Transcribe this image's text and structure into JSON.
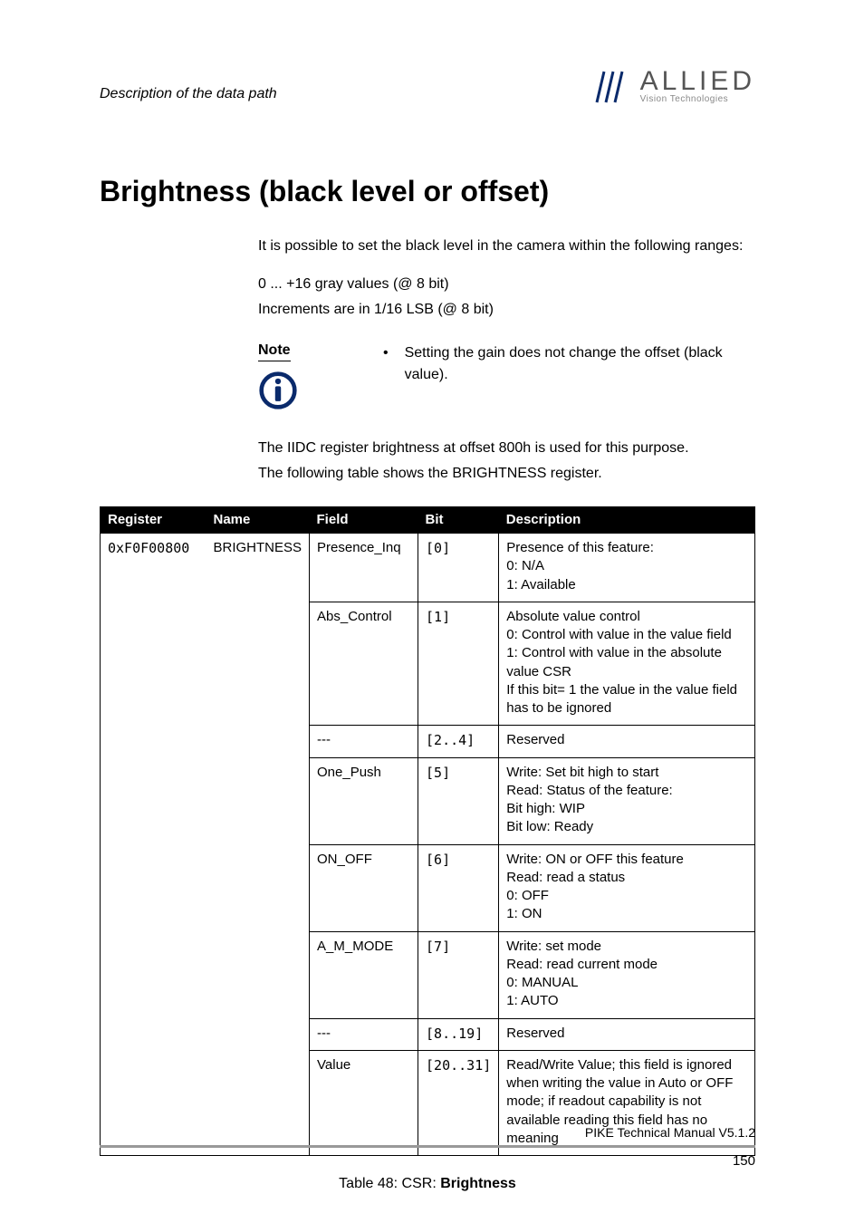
{
  "header": {
    "section_title": "Description of the data path",
    "logo": {
      "line1": "ALLIED",
      "line2": "Vision Technologies"
    }
  },
  "heading": "Brightness (black level or offset)",
  "intro": {
    "p1": "It is possible to set the black level in the camera within the following ranges:",
    "p2": "0 ... +16 gray values (@ 8 bit)",
    "p3": "Increments are in 1/16 LSB (@ 8 bit)"
  },
  "note": {
    "label": "Note",
    "text": "Setting the gain does not change the offset (black value)."
  },
  "after_note": {
    "p1": "The IIDC register brightness at offset 800h is used for this purpose.",
    "p2": "The following table shows the BRIGHTNESS register."
  },
  "table": {
    "columns": [
      "Register",
      "Name",
      "Field",
      "Bit",
      "Description"
    ],
    "register": "0xF0F00800",
    "name": "BRIGHTNESS",
    "rows": [
      {
        "field": "Presence_Inq",
        "bit": "[0]",
        "desc": "Presence of this feature:\n0: N/A\n1: Available"
      },
      {
        "field": "Abs_Control",
        "bit": "[1]",
        "desc": "Absolute value control\n0: Control with value in the value field\n1: Control with value in the absolute value CSR\nIf this bit= 1 the value in the value field has to be ignored"
      },
      {
        "field": "---",
        "bit": "[2..4]",
        "desc": "Reserved"
      },
      {
        "field": "One_Push",
        "bit": "[5]",
        "desc": "Write: Set bit high to start\nRead: Status of the feature:\nBit high: WIP\nBit low: Ready"
      },
      {
        "field": "ON_OFF",
        "bit": "[6]",
        "desc": "Write: ON or OFF this feature\nRead: read a status\n0: OFF\n1: ON"
      },
      {
        "field": "A_M_MODE",
        "bit": "[7]",
        "desc": "Write: set mode\nRead: read current mode\n0: MANUAL\n1: AUTO"
      },
      {
        "field": "---",
        "bit": "[8..19]",
        "desc": "Reserved"
      },
      {
        "field": "Value",
        "bit": "[20..31]",
        "desc": "Read/Write Value; this field is ignored when writing the value in Auto or OFF mode; if readout capability is not available reading this field has no meaning"
      }
    ],
    "caption_prefix": "Table 48: CSR: ",
    "caption_bold": "Brightness"
  },
  "footer": {
    "doc": "PIKE Technical Manual V5.1.2",
    "page": "150"
  },
  "colors": {
    "rule": "#999999",
    "text": "#000000",
    "table_header_bg": "#000000",
    "table_header_fg": "#ffffff",
    "logo_text": "#555555",
    "logo_sub": "#888888",
    "info_icon": "#0a2a6b"
  }
}
